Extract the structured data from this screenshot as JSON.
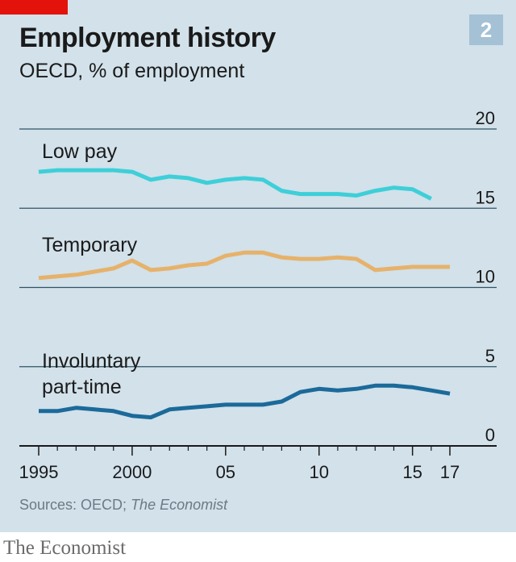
{
  "header": {
    "title": "Employment history",
    "subtitle": "OECD, % of employment",
    "chart_number": "2"
  },
  "footer": {
    "source_prefix": "Sources: OECD;",
    "source_italic": "The Economist",
    "brand": "The Economist"
  },
  "colors": {
    "background": "#d2e1ea",
    "low_pay": "#3ecfd8",
    "temporary": "#e6b26b",
    "involuntary": "#1b6a9a",
    "grid": "#2f5366",
    "brand_red": "#e3120b"
  },
  "chart_data": {
    "type": "line",
    "title": "Employment history",
    "subtitle": "OECD, % of employment",
    "xlim": [
      1995,
      2017
    ],
    "ylim": [
      0,
      20
    ],
    "y_ticks": [
      0,
      5,
      10,
      15,
      20
    ],
    "x_ticks": [
      {
        "value": 1995,
        "label": "1995"
      },
      {
        "value": 2000,
        "label": "2000"
      },
      {
        "value": 2005,
        "label": "05"
      },
      {
        "value": 2010,
        "label": "10"
      },
      {
        "value": 2015,
        "label": "15"
      },
      {
        "value": 2017,
        "label": "17"
      }
    ],
    "grid": true,
    "series": [
      {
        "name": "Low pay",
        "color_key": "low_pay",
        "x": [
          1995,
          1996,
          1997,
          1998,
          1999,
          2000,
          2001,
          2002,
          2003,
          2004,
          2005,
          2006,
          2007,
          2008,
          2009,
          2010,
          2011,
          2012,
          2013,
          2014,
          2015,
          2016
        ],
        "values": [
          17.3,
          17.4,
          17.4,
          17.4,
          17.4,
          17.3,
          16.8,
          17.0,
          16.9,
          16.6,
          16.8,
          16.9,
          16.8,
          16.1,
          15.9,
          15.9,
          15.9,
          15.8,
          16.1,
          16.3,
          16.2,
          15.6
        ]
      },
      {
        "name": "Temporary",
        "color_key": "temporary",
        "x": [
          1995,
          1996,
          1997,
          1998,
          1999,
          2000,
          2001,
          2002,
          2003,
          2004,
          2005,
          2006,
          2007,
          2008,
          2009,
          2010,
          2011,
          2012,
          2013,
          2014,
          2015,
          2016,
          2017
        ],
        "values": [
          10.6,
          10.7,
          10.8,
          11.0,
          11.2,
          11.7,
          11.1,
          11.2,
          11.4,
          11.5,
          12.0,
          12.2,
          12.2,
          11.9,
          11.8,
          11.8,
          11.9,
          11.8,
          11.1,
          11.2,
          11.3,
          11.3,
          11.3
        ]
      },
      {
        "name": "Involuntary part-time",
        "label_lines": [
          "Involuntary",
          "part-time"
        ],
        "color_key": "involuntary",
        "x": [
          1995,
          1996,
          1997,
          1998,
          1999,
          2000,
          2001,
          2002,
          2003,
          2004,
          2005,
          2006,
          2007,
          2008,
          2009,
          2010,
          2011,
          2012,
          2013,
          2014,
          2015,
          2016,
          2017
        ],
        "values": [
          2.2,
          2.2,
          2.4,
          2.3,
          2.2,
          1.9,
          1.8,
          2.3,
          2.4,
          2.5,
          2.6,
          2.6,
          2.6,
          2.8,
          3.4,
          3.6,
          3.5,
          3.6,
          3.8,
          3.8,
          3.7,
          3.5,
          3.3
        ]
      }
    ]
  }
}
